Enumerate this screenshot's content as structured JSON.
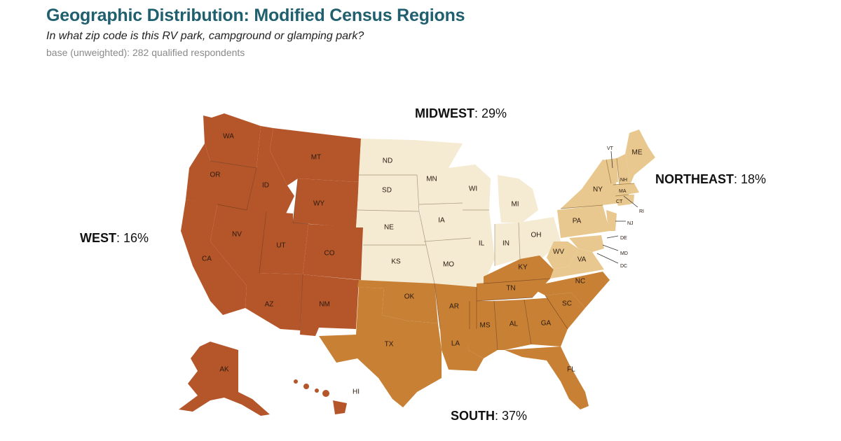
{
  "header": {
    "title": "Geographic Distribution: Modified Census Regions",
    "subtitle": "In what zip code is this RV park, campground or glamping park?",
    "base": "base (unweighted): 282 qualified respondents"
  },
  "regions": {
    "west": {
      "name": "WEST",
      "pct": ": 16%",
      "color": "#b5562a"
    },
    "midwest": {
      "name": "MIDWEST",
      "pct": ": 29%",
      "color": "#f5ead2"
    },
    "south": {
      "name": "SOUTH",
      "pct": ": 37%",
      "color": "#c88035"
    },
    "northeast": {
      "name": "NORTHEAST",
      "pct": ": 18%",
      "color": "#e8c88e"
    }
  },
  "states": {
    "WA": "WA",
    "OR": "OR",
    "CA": "CA",
    "ID": "ID",
    "NV": "NV",
    "MT": "MT",
    "WY": "WY",
    "UT": "UT",
    "CO": "CO",
    "AZ": "AZ",
    "NM": "NM",
    "AK": "AK",
    "HI": "HI",
    "ND": "ND",
    "SD": "SD",
    "NE": "NE",
    "KS": "KS",
    "MN": "MN",
    "IA": "IA",
    "MO": "MO",
    "WI": "WI",
    "IL": "IL",
    "IN": "IN",
    "MI": "MI",
    "OH": "OH",
    "OK": "OK",
    "TX": "TX",
    "AR": "AR",
    "LA": "LA",
    "MS": "MS",
    "AL": "AL",
    "GA": "GA",
    "FL": "FL",
    "SC": "SC",
    "NC": "NC",
    "TN": "TN",
    "KY": "KY",
    "WV": "WV",
    "VA": "VA",
    "MD": "MD",
    "DE": "DE",
    "DC": "DC",
    "PA": "PA",
    "NY": "NY",
    "NJ": "NJ",
    "CT": "CT",
    "RI": "RI",
    "MA": "MA",
    "VT": "VT",
    "NH": "NH",
    "ME": "ME"
  }
}
